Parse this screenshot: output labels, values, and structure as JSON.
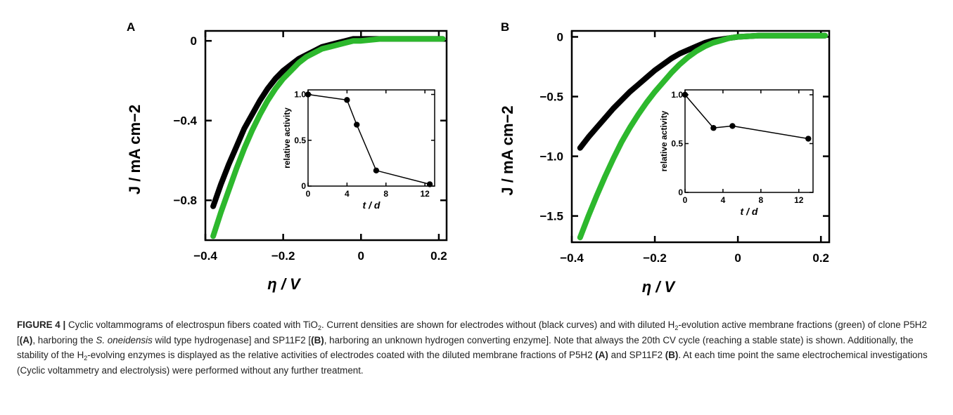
{
  "colors": {
    "no_membrane": "#000000",
    "with_membrane": "#2db82d",
    "inset_line": "#000000"
  },
  "chart_data": [
    {
      "type": "line",
      "panel": "A",
      "xlabel": "η / V",
      "ylabel": "J / mA cm−2",
      "xlim": [
        -0.4,
        0.22
      ],
      "ylim": [
        -1.0,
        0.05
      ],
      "xticks": [
        -0.4,
        -0.2,
        0,
        0.2
      ],
      "xtick_labels": [
        "−0.4",
        "−0.2",
        "0",
        "0.2"
      ],
      "yticks": [
        0,
        -0.4,
        -0.8
      ],
      "ytick_labels": [
        "0",
        "−0.4",
        "−0.8"
      ],
      "series": [
        {
          "color_key": "no_membrane",
          "x": [
            -0.38,
            -0.36,
            -0.34,
            -0.32,
            -0.3,
            -0.28,
            -0.26,
            -0.24,
            -0.22,
            -0.2,
            -0.18,
            -0.16,
            -0.14,
            -0.12,
            -0.1,
            -0.08,
            -0.06,
            -0.04,
            -0.02,
            0.0,
            0.05,
            0.1,
            0.15,
            0.21
          ],
          "y": [
            -0.83,
            -0.72,
            -0.62,
            -0.53,
            -0.44,
            -0.37,
            -0.3,
            -0.24,
            -0.19,
            -0.15,
            -0.12,
            -0.09,
            -0.07,
            -0.05,
            -0.03,
            -0.02,
            -0.01,
            0.0,
            0.01,
            0.01,
            0.01,
            0.01,
            0.01,
            0.01
          ]
        },
        {
          "color_key": "with_membrane",
          "x": [
            -0.38,
            -0.36,
            -0.34,
            -0.32,
            -0.3,
            -0.28,
            -0.26,
            -0.24,
            -0.22,
            -0.2,
            -0.18,
            -0.16,
            -0.14,
            -0.12,
            -0.1,
            -0.08,
            -0.06,
            -0.04,
            -0.02,
            0.0,
            0.05,
            0.1,
            0.15,
            0.21
          ],
          "y": [
            -0.98,
            -0.86,
            -0.75,
            -0.64,
            -0.54,
            -0.45,
            -0.37,
            -0.3,
            -0.24,
            -0.19,
            -0.15,
            -0.11,
            -0.08,
            -0.06,
            -0.04,
            -0.03,
            -0.02,
            -0.01,
            0.0,
            0.0,
            0.01,
            0.01,
            0.01,
            0.01
          ]
        }
      ],
      "inset": {
        "type": "line",
        "xlabel": "t / d",
        "ylabel": "relative activity",
        "xlim": [
          0,
          13
        ],
        "ylim": [
          0,
          1.05
        ],
        "xticks": [
          0,
          4,
          8,
          12
        ],
        "xtick_labels": [
          "0",
          "4",
          "8",
          "12"
        ],
        "yticks": [
          0,
          0.5,
          1.0
        ],
        "ytick_labels": [
          "0",
          "0.5",
          "1.0"
        ],
        "x": [
          0,
          4,
          5,
          7,
          12.5
        ],
        "y": [
          1.0,
          0.94,
          0.67,
          0.17,
          0.02
        ]
      }
    },
    {
      "type": "line",
      "panel": "B",
      "xlabel": "η / V",
      "ylabel": "J / mA cm−2",
      "xlim": [
        -0.4,
        0.22
      ],
      "ylim": [
        -1.72,
        0.05
      ],
      "xticks": [
        -0.4,
        -0.2,
        0,
        0.2
      ],
      "xtick_labels": [
        "−0.4",
        "−0.2",
        "0",
        "0.2"
      ],
      "yticks": [
        0,
        -0.5,
        -1.0,
        -1.5
      ],
      "ytick_labels": [
        "0",
        "−0.5",
        "−1.0",
        "−1.5"
      ],
      "series": [
        {
          "color_key": "no_membrane",
          "x": [
            -0.38,
            -0.36,
            -0.34,
            -0.32,
            -0.3,
            -0.28,
            -0.26,
            -0.24,
            -0.22,
            -0.2,
            -0.18,
            -0.16,
            -0.14,
            -0.12,
            -0.1,
            -0.08,
            -0.06,
            -0.04,
            -0.02,
            0.0,
            0.05,
            0.1,
            0.15,
            0.21
          ],
          "y": [
            -0.93,
            -0.84,
            -0.76,
            -0.68,
            -0.6,
            -0.53,
            -0.46,
            -0.4,
            -0.34,
            -0.28,
            -0.23,
            -0.18,
            -0.14,
            -0.11,
            -0.08,
            -0.05,
            -0.03,
            -0.02,
            -0.01,
            0.0,
            0.01,
            0.01,
            0.01,
            0.01
          ]
        },
        {
          "color_key": "with_membrane",
          "x": [
            -0.38,
            -0.36,
            -0.34,
            -0.32,
            -0.3,
            -0.28,
            -0.26,
            -0.24,
            -0.22,
            -0.2,
            -0.18,
            -0.16,
            -0.14,
            -0.12,
            -0.1,
            -0.08,
            -0.06,
            -0.04,
            -0.02,
            0.0,
            0.05,
            0.1,
            0.15,
            0.21
          ],
          "y": [
            -1.68,
            -1.5,
            -1.33,
            -1.17,
            -1.02,
            -0.88,
            -0.76,
            -0.65,
            -0.55,
            -0.46,
            -0.38,
            -0.3,
            -0.23,
            -0.17,
            -0.12,
            -0.08,
            -0.05,
            -0.03,
            -0.01,
            0.0,
            0.01,
            0.01,
            0.01,
            0.01
          ]
        }
      ],
      "inset": {
        "type": "line",
        "xlabel": "t / d",
        "ylabel": "relative activity",
        "xlim": [
          0,
          13.5
        ],
        "ylim": [
          0,
          1.05
        ],
        "xticks": [
          0,
          4,
          8,
          12
        ],
        "xtick_labels": [
          "0",
          "4",
          "8",
          "12"
        ],
        "yticks": [
          0,
          0.5,
          1.0
        ],
        "ytick_labels": [
          "0",
          "0.5",
          "1.0"
        ],
        "x": [
          0,
          3,
          5,
          13
        ],
        "y": [
          1.0,
          0.66,
          0.68,
          0.55
        ]
      }
    }
  ],
  "caption": {
    "label": "FIGURE 4 |",
    "s1": " Cyclic voltammograms of electrospun fibers coated with TiO",
    "sub1": "2",
    "s2": ". Current densities are shown for electrodes without (black curves) and with diluted H",
    "sub2": "2",
    "s3": "-evolution active membrane fractions (green) of clone P5H2 [",
    "b1": "(A)",
    "s4": ", harboring the ",
    "i1": "S. oneidensis",
    "s5": " wild type hydrogenase] and SP11F2 [",
    "b2": "(B)",
    "s6": ", harboring an unknown hydrogen converting enzyme]. Note that always the 20th CV cycle (reaching a stable state) is shown. Additionally, the stability of the H",
    "sub3": "2",
    "s7": "-evolving enzymes is displayed as the relative activities of electrodes coated with the diluted membrane fractions of P5H2 ",
    "b3": "(A)",
    "s8": " and SP11F2 ",
    "b4": "(B)",
    "s9": ". At each time point the same electrochemical investigations (Cyclic voltammetry and electrolysis) were performed without any further treatment."
  }
}
